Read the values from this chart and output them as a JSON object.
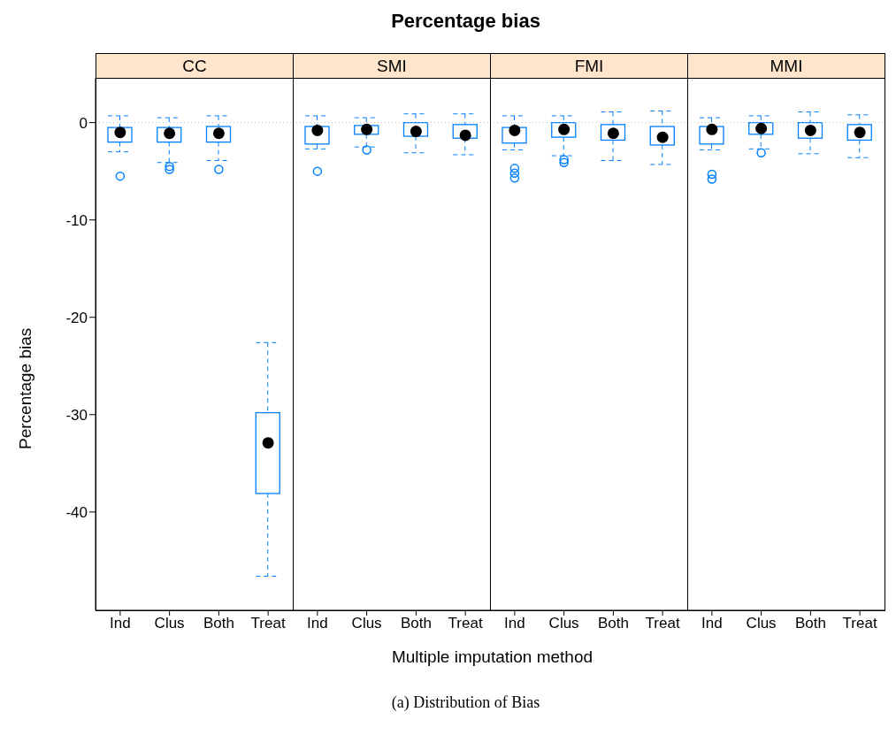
{
  "chart_data": [
    {
      "type": "box",
      "title": "CC",
      "ylabel": "Percentage bias",
      "annotations": [
        "Percentage bias",
        "Multiple imputation method",
        "(a) Distribution of Bias"
      ],
      "categories": [
        "Ind",
        "Clus",
        "Both",
        "Treat"
      ],
      "color": "#0080ff",
      "ylim": [
        -50.1,
        4.6
      ],
      "yticks": [
        0,
        -10,
        -20,
        -30,
        -40
      ],
      "ref_lines": [
        {
          "axis": "y",
          "value": 0,
          "color": "#bebebe",
          "line_style": "dotted"
        }
      ],
      "boxes": [
        {
          "low": -3.0,
          "q1": -2.0,
          "median": -1.0,
          "q3": -0.5,
          "high": 0.7,
          "outliers": [
            -5.5
          ]
        },
        {
          "low": -4.1,
          "q1": -2.0,
          "median": -1.1,
          "q3": -0.5,
          "high": 0.5,
          "outliers": [
            -4.5,
            -4.8
          ]
        },
        {
          "low": -3.9,
          "q1": -2.0,
          "median": -1.1,
          "q3": -0.4,
          "high": 0.7,
          "outliers": [
            -4.8
          ]
        },
        {
          "low": -46.6,
          "q1": -38.1,
          "median": -32.9,
          "q3": -29.8,
          "high": -22.6
        }
      ]
    },
    {
      "type": "box",
      "title": "SMI",
      "tick_labels": "x",
      "categories": [
        "Ind",
        "Clus",
        "Both",
        "Treat"
      ],
      "color": "#0080ff",
      "ylim": [
        -50.1,
        4.6
      ],
      "yticks": [
        0,
        -10,
        -20,
        -30,
        -40
      ],
      "ref_lines": [
        {
          "axis": "y",
          "value": 0,
          "color": "#bebebe",
          "line_style": "dotted"
        }
      ],
      "boxes": [
        {
          "low": -2.7,
          "q1": -2.2,
          "median": -0.8,
          "q3": -0.4,
          "high": 0.7,
          "outliers": [
            -5.0
          ]
        },
        {
          "low": -2.5,
          "q1": -1.2,
          "median": -0.7,
          "q3": -0.3,
          "high": 0.5,
          "outliers": [
            -2.8
          ]
        },
        {
          "low": -3.1,
          "q1": -1.4,
          "median": -0.9,
          "q3": 0.0,
          "high": 0.9
        },
        {
          "low": -3.3,
          "q1": -1.6,
          "median": -1.3,
          "q3": -0.2,
          "high": 0.9
        }
      ]
    },
    {
      "type": "box",
      "title": "FMI",
      "tick_labels": "x",
      "categories": [
        "Ind",
        "Clus",
        "Both",
        "Treat"
      ],
      "color": "#0080ff",
      "ylim": [
        -50.1,
        4.6
      ],
      "yticks": [
        0,
        -10,
        -20,
        -30,
        -40
      ],
      "ref_lines": [
        {
          "axis": "y",
          "value": 0,
          "color": "#bebebe",
          "line_style": "dotted"
        }
      ],
      "boxes": [
        {
          "low": -2.8,
          "q1": -2.1,
          "median": -0.8,
          "q3": -0.5,
          "high": 0.7,
          "outliers": [
            -4.7,
            -5.2,
            -5.7
          ]
        },
        {
          "low": -3.4,
          "q1": -1.5,
          "median": -0.7,
          "q3": 0.0,
          "high": 0.7,
          "outliers": [
            -3.8,
            -4.1
          ]
        },
        {
          "low": -3.9,
          "q1": -1.8,
          "median": -1.1,
          "q3": -0.2,
          "high": 1.1
        },
        {
          "low": -4.3,
          "q1": -2.3,
          "median": -1.5,
          "q3": -0.4,
          "high": 1.2
        }
      ]
    },
    {
      "type": "box",
      "title": "MMI",
      "tick_labels": "x",
      "categories": [
        "Ind",
        "Clus",
        "Both",
        "Treat"
      ],
      "color": "#0080ff",
      "ylim": [
        -50.1,
        4.6
      ],
      "yticks": [
        0,
        -10,
        -20,
        -30,
        -40
      ],
      "ref_lines": [
        {
          "axis": "y",
          "value": 0,
          "color": "#bebebe",
          "line_style": "dotted"
        }
      ],
      "boxes": [
        {
          "low": -2.8,
          "q1": -2.2,
          "median": -0.7,
          "q3": -0.4,
          "high": 0.5,
          "outliers": [
            -5.3,
            -5.8
          ]
        },
        {
          "low": -2.7,
          "q1": -1.2,
          "median": -0.6,
          "q3": 0.0,
          "high": 0.7,
          "outliers": [
            -3.1
          ]
        },
        {
          "low": -3.2,
          "q1": -1.6,
          "median": -0.8,
          "q3": 0.0,
          "high": 1.1
        },
        {
          "low": -3.6,
          "q1": -1.8,
          "median": -1.0,
          "q3": -0.2,
          "high": 0.8
        }
      ]
    }
  ]
}
